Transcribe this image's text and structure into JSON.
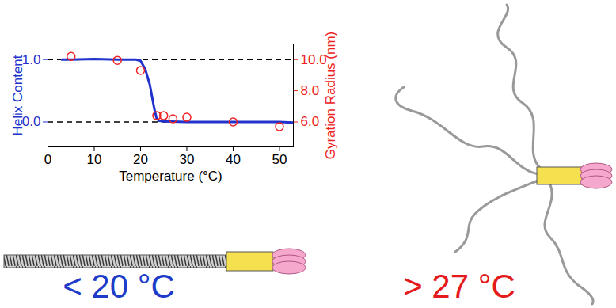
{
  "chart_data": {
    "type": "line",
    "xlabel": "Temperature (°C)",
    "xlim": [
      0,
      53
    ],
    "xticks": [
      0,
      10,
      20,
      30,
      40,
      50
    ],
    "ylim": [
      -0.4,
      1.25
    ],
    "yticks": [
      0,
      1
    ],
    "y2lim": [
      4.4,
      11
    ],
    "y2ticks": [
      6,
      8,
      10
    ],
    "hlines": [
      0,
      1
    ],
    "series": [
      {
        "name": "Helix Content",
        "type": "line",
        "color": "#2233cc",
        "x": [
          3,
          5,
          10,
          15,
          19,
          20,
          21,
          22,
          22.5,
          23,
          23.5,
          24,
          25,
          30,
          40,
          50,
          53
        ],
        "values": [
          1,
          1,
          1.01,
          1,
          1,
          0.98,
          0.85,
          0.6,
          0.4,
          0.2,
          0.05,
          0.02,
          0.01,
          0,
          0,
          0,
          -0.01
        ]
      },
      {
        "name": "Gyration Radius (nm)",
        "type": "scatter",
        "axis": "y2",
        "color": "#ee2222",
        "marker": "open circle",
        "x": [
          5,
          15,
          20,
          23.5,
          25,
          27,
          30,
          40,
          50
        ],
        "values": [
          10.2,
          9.95,
          9.3,
          6.4,
          6.4,
          6.2,
          6.3,
          6.0,
          5.7
        ]
      }
    ],
    "annotations": [
      {
        "text": "< 20 °C",
        "color": "#1e3cc8"
      },
      {
        "text": "> 27 °C",
        "color": "#e41a1c"
      }
    ]
  }
}
